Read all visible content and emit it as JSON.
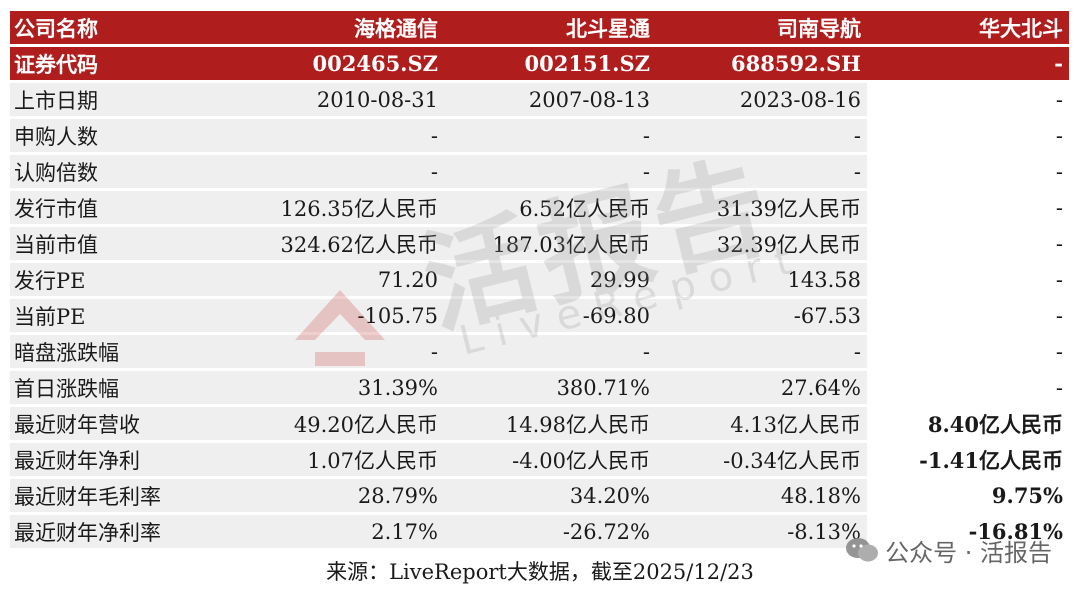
{
  "header": {
    "row1": [
      "公司名称",
      "海格通信",
      "北斗星通",
      "司南导航",
      "华大北斗"
    ],
    "row2": [
      "证券代码",
      "002465.SZ",
      "002151.SZ",
      "688592.SH",
      "-"
    ]
  },
  "rows": [
    {
      "label": "上市日期",
      "v": [
        "2010-08-31",
        "2007-08-13",
        "2023-08-16",
        "-"
      ]
    },
    {
      "label": "申购人数",
      "v": [
        "-",
        "-",
        "-",
        "-"
      ]
    },
    {
      "label": "认购倍数",
      "v": [
        "-",
        "-",
        "-",
        "-"
      ]
    },
    {
      "label": "发行市值",
      "v": [
        "126.35亿人民币",
        "6.52亿人民币",
        "31.39亿人民币",
        "-"
      ]
    },
    {
      "label": "当前市值",
      "v": [
        "324.62亿人民币",
        "187.03亿人民币",
        "32.39亿人民币",
        "-"
      ]
    },
    {
      "label": "发行PE",
      "v": [
        "71.20",
        "29.99",
        "143.58",
        "-"
      ]
    },
    {
      "label": "当前PE",
      "v": [
        "-105.75",
        "-69.80",
        "-67.53",
        "-"
      ]
    },
    {
      "label": "暗盘涨跌幅",
      "v": [
        "-",
        "-",
        "-",
        "-"
      ]
    },
    {
      "label": "首日涨跌幅",
      "v": [
        "31.39%",
        "380.71%",
        "27.64%",
        "-"
      ]
    },
    {
      "label": "最近财年营收",
      "v": [
        "49.20亿人民币",
        "14.98亿人民币",
        "4.13亿人民币",
        "8.40亿人民币"
      ]
    },
    {
      "label": "最近财年净利",
      "v": [
        "1.07亿人民币",
        "-4.00亿人民币",
        "-0.34亿人民币",
        "-1.41亿人民币"
      ]
    },
    {
      "label": "最近财年毛利率",
      "v": [
        "28.79%",
        "34.20%",
        "48.18%",
        "9.75%"
      ]
    },
    {
      "label": "最近财年净利率",
      "v": [
        "2.17%",
        "-26.72%",
        "-8.13%",
        "-16.81%"
      ]
    }
  ],
  "source": "来源：LiveReport大数据，截至2025/12/23",
  "watermark": {
    "main": "活报告",
    "sub": "LiveReport"
  },
  "wechat_tag": "公众号 · 活报告",
  "colors": {
    "header_bg": "#b01d1d",
    "row_bg": "#efefef",
    "text": "#1a1a1a"
  },
  "icons": {
    "wechat": "wechat-icon",
    "logo": "livereport-logo-icon"
  }
}
